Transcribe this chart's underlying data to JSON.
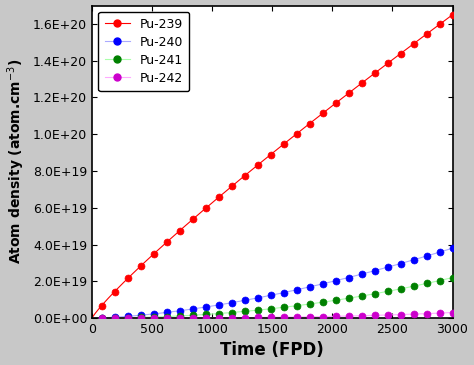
{
  "title": "",
  "xlabel": "Time (FPD)",
  "xlim": [
    0,
    3000
  ],
  "ylim": [
    0,
    1.7e+20
  ],
  "yticks": [
    0,
    2e+19,
    4e+19,
    6e+19,
    8e+19,
    1e+20,
    1.2e+20,
    1.4e+20,
    1.6e+20
  ],
  "ytick_labels": [
    "0.0E+00",
    "2.0E+19",
    "4.0E+19",
    "6.0E+19",
    "8.0E+19",
    "1.0E+20",
    "1.2E+20",
    "1.4E+20",
    "1.6E+20"
  ],
  "xticks": [
    0,
    500,
    1000,
    1500,
    2000,
    2500,
    3000
  ],
  "series": [
    {
      "label": "Pu-239",
      "line_color": "#ff0000",
      "marker_color": "#ff0000",
      "power": 0.88,
      "scale": 1.65e+20,
      "marker": "o",
      "markersize": 5,
      "linewidth": 0.8
    },
    {
      "label": "Pu-240",
      "line_color": "#aaaaff",
      "marker_color": "#0000ff",
      "power": 1.6,
      "scale": 3.8e+19,
      "marker": "o",
      "markersize": 5,
      "linewidth": 0.8
    },
    {
      "label": "Pu-241",
      "line_color": "#aaffaa",
      "marker_color": "#008000",
      "power": 2.1,
      "scale": 2.2e+19,
      "marker": "o",
      "markersize": 5,
      "linewidth": 0.8
    },
    {
      "label": "Pu-242",
      "line_color": "#ffaaff",
      "marker_color": "#cc00cc",
      "power": 3.0,
      "scale": 3e+18,
      "marker": "o",
      "markersize": 5,
      "linewidth": 0.8
    }
  ],
  "n_marker_points": 28,
  "legend_loc": "upper left",
  "fig_facecolor": "#c8c8c8",
  "ax_facecolor": "#ffffff",
  "xlabel_fontsize": 12,
  "ylabel_fontsize": 10,
  "tick_fontsize": 9,
  "legend_fontsize": 9,
  "bold_labels": true
}
